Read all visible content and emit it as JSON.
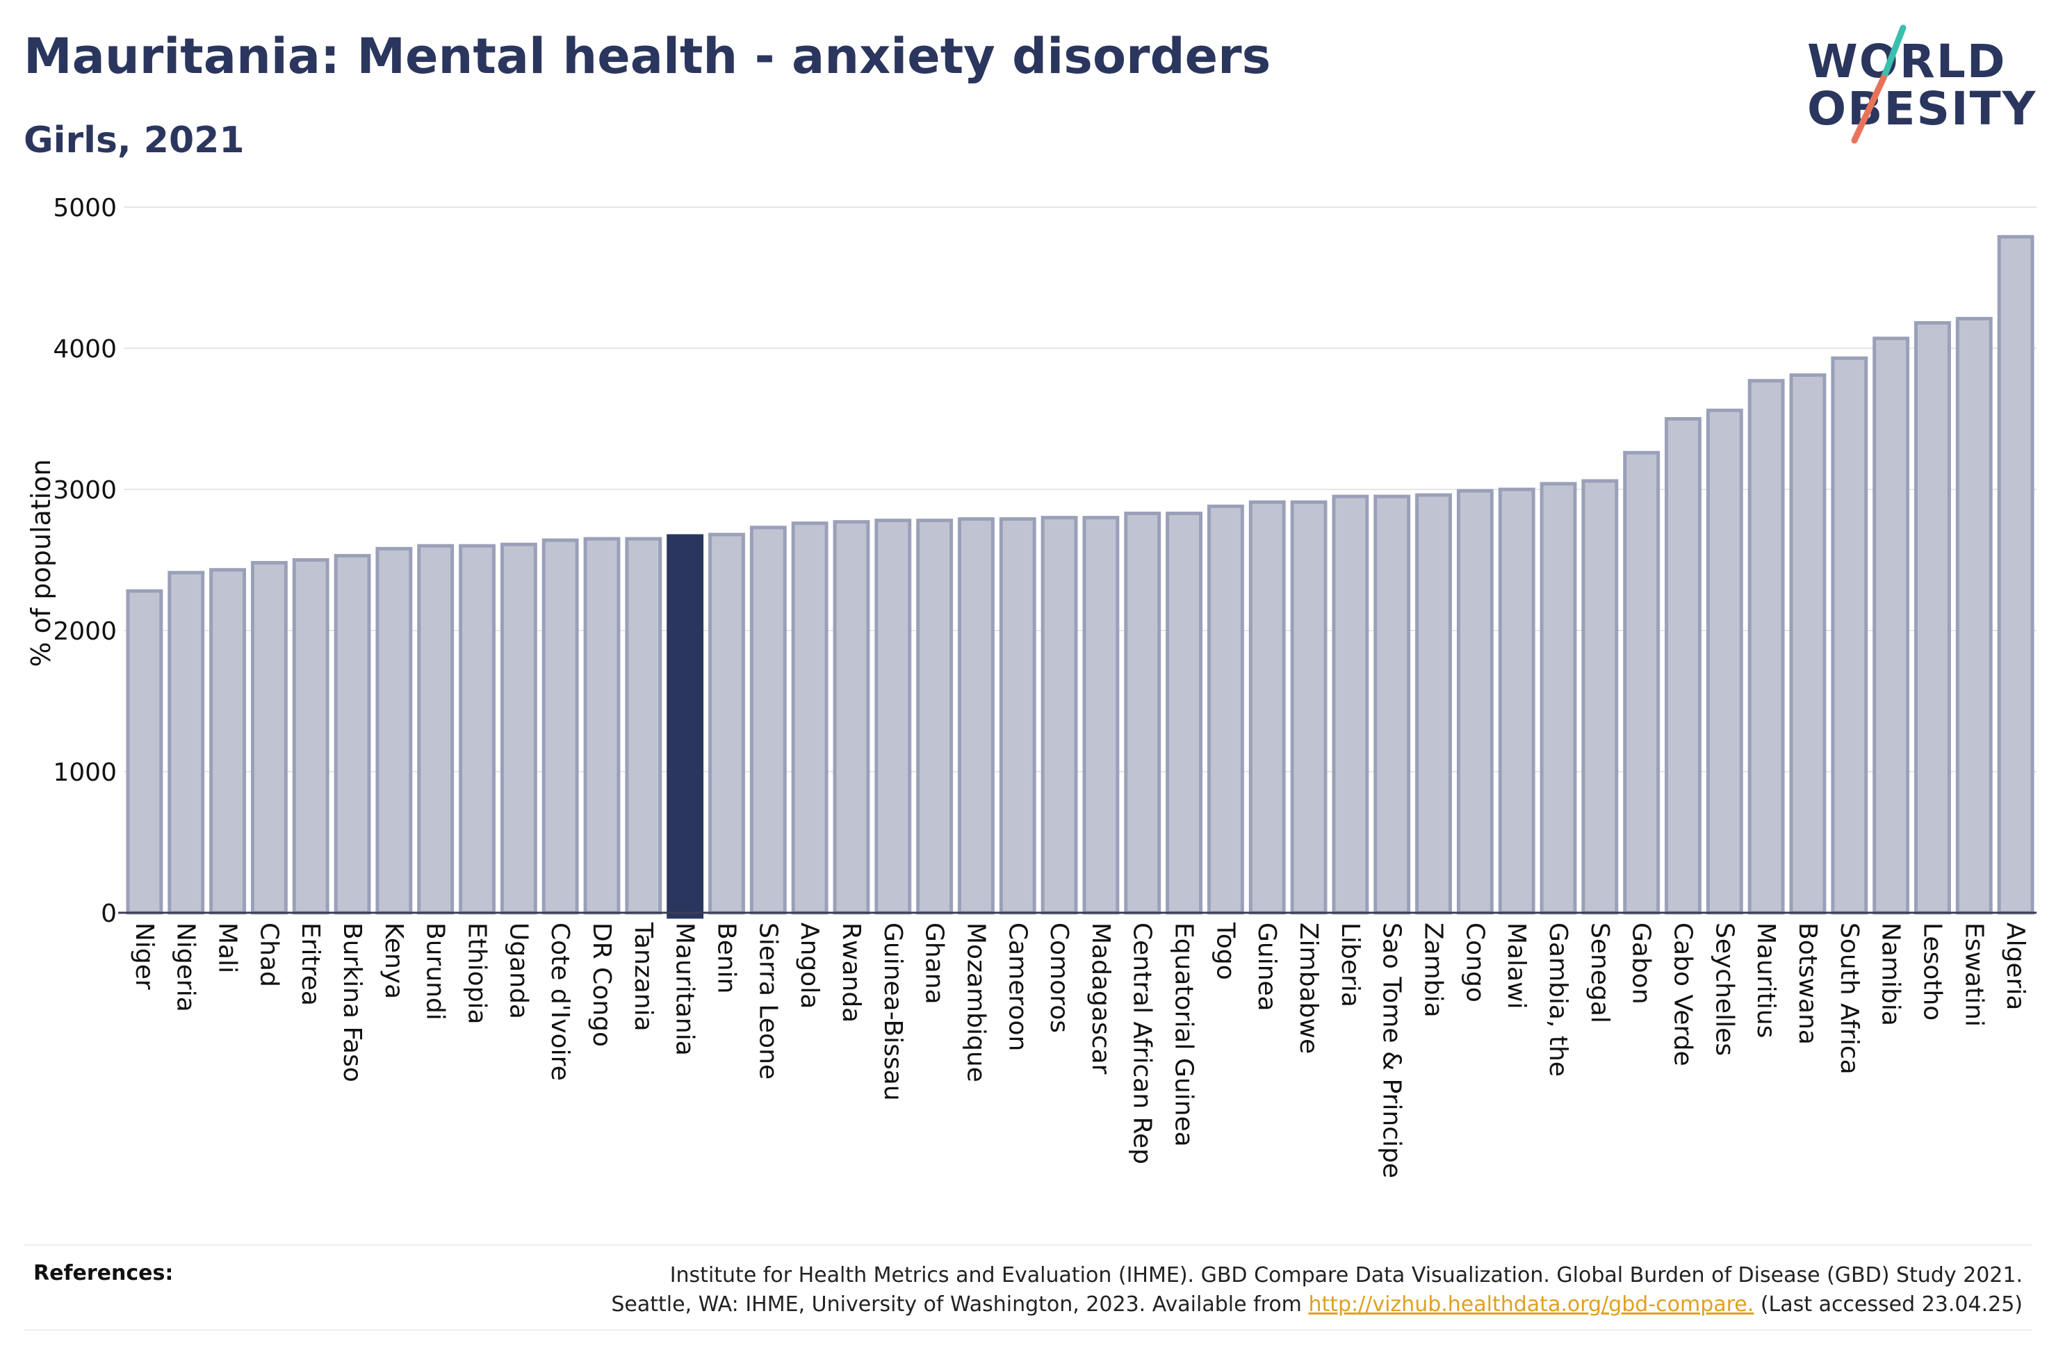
{
  "header": {
    "title": "Mauritania: Mental health - anxiety disorders",
    "subtitle": "Girls, 2021"
  },
  "logo": {
    "line1": "WORLD",
    "line2": "OBESITY",
    "accent_teal": "#3bbfad",
    "accent_coral": "#e8735a"
  },
  "colors": {
    "bar_fill": "#c0c4d2",
    "bar_stroke": "#9aa0b8",
    "highlight_fill": "#2b365e",
    "axis_text": "#111111",
    "grid": "#e6e6e6"
  },
  "chart_data": {
    "type": "bar",
    "title": "Mauritania: Mental health - anxiety disorders",
    "subtitle": "Girls, 2021",
    "xlabel": "",
    "ylabel": "% of population",
    "ylim": [
      0,
      5000
    ],
    "yticks": [
      0,
      1000,
      2000,
      3000,
      4000,
      5000
    ],
    "grid": true,
    "legend": "none",
    "highlight": "Mauritania",
    "categories": [
      "Niger",
      "Nigeria",
      "Mali",
      "Chad",
      "Eritrea",
      "Burkina Faso",
      "Kenya",
      "Burundi",
      "Ethiopia",
      "Uganda",
      "Cote d'Ivoire",
      "DR Congo",
      "Tanzania",
      "Mauritania",
      "Benin",
      "Sierra Leone",
      "Angola",
      "Rwanda",
      "Guinea-Bissau",
      "Ghana",
      "Mozambique",
      "Cameroon",
      "Comoros",
      "Madagascar",
      "Central African Rep",
      "Equatorial Guinea",
      "Togo",
      "Guinea",
      "Zimbabwe",
      "Liberia",
      "Sao Tome & Principe",
      "Zambia",
      "Congo",
      "Malawi",
      "Gambia, the",
      "Senegal",
      "Gabon",
      "Cabo Verde",
      "Seychelles",
      "Mauritius",
      "Botswana",
      "South Africa",
      "Namibia",
      "Lesotho",
      "Eswatini",
      "Algeria"
    ],
    "values": [
      2280,
      2410,
      2430,
      2480,
      2500,
      2530,
      2580,
      2600,
      2600,
      2610,
      2640,
      2650,
      2650,
      2670,
      2680,
      2730,
      2760,
      2770,
      2780,
      2780,
      2790,
      2790,
      2800,
      2800,
      2830,
      2830,
      2880,
      2910,
      2910,
      2950,
      2950,
      2960,
      2990,
      3000,
      3040,
      3060,
      3260,
      3500,
      3560,
      3770,
      3810,
      3930,
      4070,
      4180,
      4210,
      4790
    ]
  },
  "references": {
    "label": "References:",
    "line1": "Institute for Health Metrics and Evaluation (IHME). GBD Compare Data Visualization. Global Burden of Disease (GBD) Study 2021.",
    "line2_prefix": "Seattle, WA: IHME, University of Washington, 2023. Available from ",
    "link": "http://vizhub.healthdata.org/gbd-compare.",
    "line2_suffix": " (Last accessed 23.04.25)"
  }
}
